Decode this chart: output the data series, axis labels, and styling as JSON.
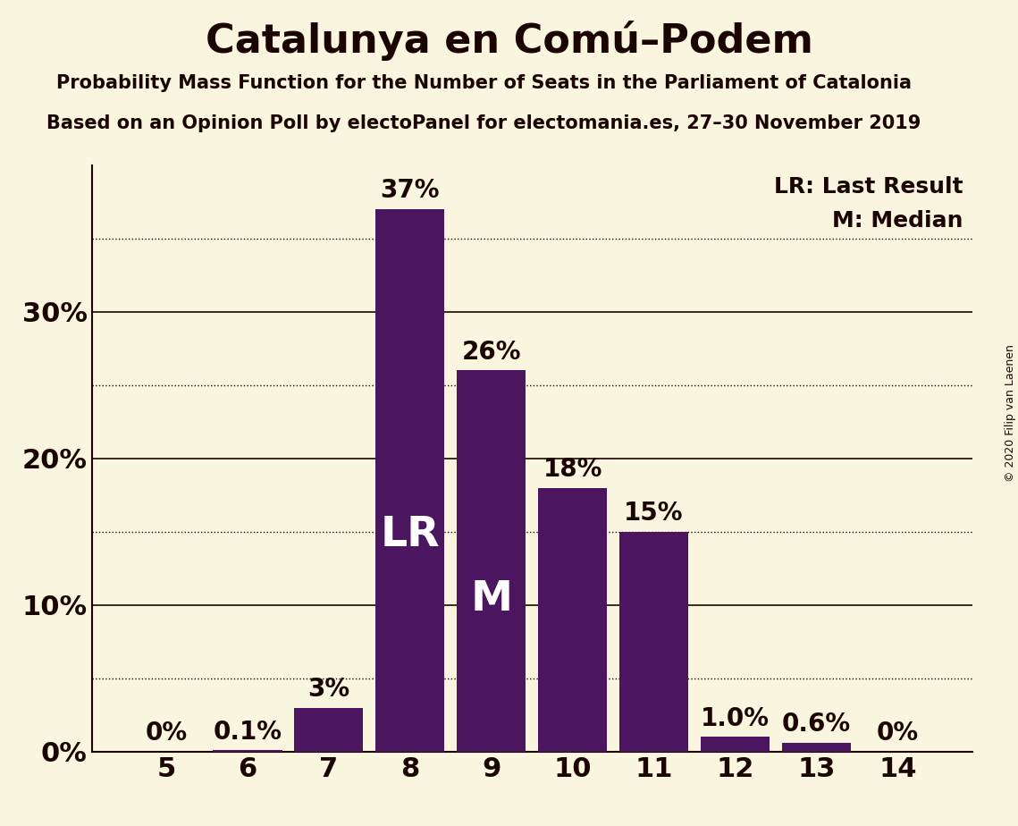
{
  "title": "Catalunya en Comú–Podem",
  "subtitle1": "Probability Mass Function for the Number of Seats in the Parliament of Catalonia",
  "subtitle2": "Based on an Opinion Poll by electoPanel for electomania.es, 27–30 November 2019",
  "copyright": "© 2020 Filip van Laenen",
  "categories": [
    5,
    6,
    7,
    8,
    9,
    10,
    11,
    12,
    13,
    14
  ],
  "values": [
    0.0,
    0.1,
    3.0,
    37.0,
    26.0,
    18.0,
    15.0,
    1.0,
    0.6,
    0.0
  ],
  "bar_color": "#4b1560",
  "background_color": "#faf5df",
  "text_color": "#1a0500",
  "label_LR_bar_index": 3,
  "label_M_bar_index": 4,
  "lr_label": "LR",
  "m_label": "M",
  "ylabel_ticks": [
    0,
    10,
    20,
    30
  ],
  "dotted_ticks": [
    5,
    15,
    25,
    35
  ],
  "ylim": [
    0,
    40
  ],
  "bar_labels": [
    "0%",
    "0.1%",
    "3%",
    "37%",
    "26%",
    "18%",
    "15%",
    "1.0%",
    "0.6%",
    "0%"
  ],
  "legend_lr": "LR: Last Result",
  "legend_m": "M: Median",
  "title_fontsize": 32,
  "subtitle_fontsize": 15,
  "axis_label_fontsize": 22,
  "bar_label_fontsize": 20,
  "inside_label_fontsize": 34,
  "legend_fontsize": 18,
  "copyright_fontsize": 9
}
